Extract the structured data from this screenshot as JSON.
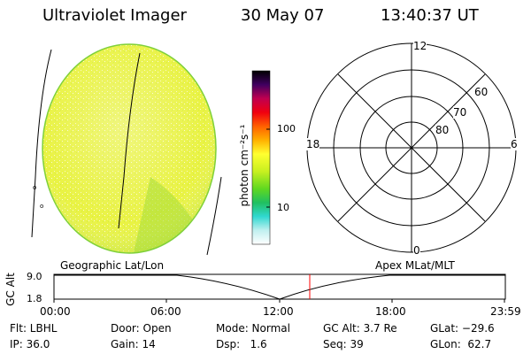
{
  "header": {
    "title": "Ultraviolet Imager",
    "date": "30 May 07",
    "time": "13:40:37 UT"
  },
  "colorbar": {
    "unit_label": "photon cm⁻²s⁻¹",
    "ticks": [
      "100",
      "10"
    ]
  },
  "polar_plot": {
    "mlt_labels": {
      "top": "12",
      "bottom": "0",
      "left": "18",
      "right": "6"
    },
    "lat_labels": [
      "60",
      "70",
      "80"
    ]
  },
  "timeline": {
    "left_title": "Geographic Lat/Lon",
    "right_title": "Apex MLat/MLT",
    "ylabel": "GC Alt",
    "ytick_top": "9.0",
    "ytick_bottom": "1.8",
    "xticks": [
      "00:00",
      "06:00",
      "12:00",
      "18:00",
      "23:59"
    ],
    "marker_color": "#ff0000"
  },
  "status": {
    "flt": "Flt: LBHL",
    "ip": "IP: 36.0",
    "door": "Door: Open",
    "gain": "Gain: 14",
    "mode": "Mode: Normal",
    "dsp": "Dsp:   1.6",
    "gc_alt": "GC Alt: 3.7 Re",
    "seq": "Seq: 39",
    "glat": "GLat: −29.6",
    "glon": "GLon:  62.7"
  }
}
